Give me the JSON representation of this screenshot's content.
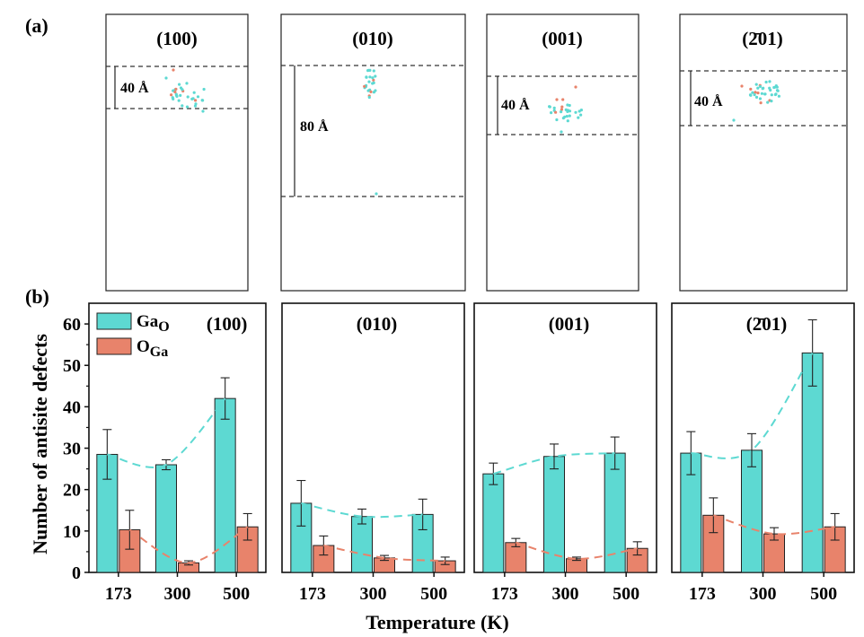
{
  "figure": {
    "panel_a_label": "(a)",
    "panel_b_label": "(b)"
  },
  "top_panels": [
    {
      "title": "(100)",
      "thickness_label": "40 Å"
    },
    {
      "title": "(010)",
      "thickness_label": "80 Å"
    },
    {
      "title": "(001)",
      "thickness_label": "40 Å"
    },
    {
      "title": "(2̄01)",
      "thickness_label": "40 Å"
    }
  ],
  "colors": {
    "ga_o": "#5dd9d2",
    "o_ga": "#e8836b",
    "edge": "#222222"
  },
  "chart_data": {
    "type": "bar",
    "ylabel": "Number of antisite defects",
    "xlabel": "Temperature (K)",
    "ylim": [
      0,
      65
    ],
    "yticks": [
      0,
      10,
      20,
      30,
      40,
      50,
      60
    ],
    "categories": [
      "173",
      "300",
      "500"
    ],
    "legend": {
      "position": "top-left",
      "entries": [
        "Ga_O",
        "O_Ga"
      ]
    },
    "panels": [
      {
        "title": "(100)",
        "series": [
          {
            "name": "Ga_O",
            "values": [
              28.5,
              26.0,
              42.0
            ],
            "errors": [
              6.0,
              1.2,
              5.0
            ]
          },
          {
            "name": "O_Ga",
            "values": [
              10.3,
              2.3,
              11.0
            ],
            "errors": [
              4.7,
              0.5,
              3.2
            ]
          }
        ]
      },
      {
        "title": "(010)",
        "series": [
          {
            "name": "Ga_O",
            "values": [
              16.7,
              13.5,
              14.0
            ],
            "errors": [
              5.5,
              1.8,
              3.7
            ]
          },
          {
            "name": "O_Ga",
            "values": [
              6.5,
              3.5,
              2.8
            ],
            "errors": [
              2.3,
              0.6,
              0.9
            ]
          }
        ]
      },
      {
        "title": "(001)",
        "series": [
          {
            "name": "Ga_O",
            "values": [
              23.8,
              28.0,
              28.8
            ],
            "errors": [
              2.6,
              3.0,
              3.9
            ]
          },
          {
            "name": "O_Ga",
            "values": [
              7.2,
              3.3,
              5.8
            ],
            "errors": [
              1.0,
              0.4,
              1.6
            ]
          }
        ]
      },
      {
        "title": "(2̄01)",
        "series": [
          {
            "name": "Ga_O",
            "values": [
              28.8,
              29.5,
              53.0
            ],
            "errors": [
              5.2,
              4.0,
              8.0
            ]
          },
          {
            "name": "O_Ga",
            "values": [
              13.8,
              9.3,
              11.0
            ],
            "errors": [
              4.2,
              1.5,
              3.2
            ]
          }
        ]
      }
    ]
  }
}
